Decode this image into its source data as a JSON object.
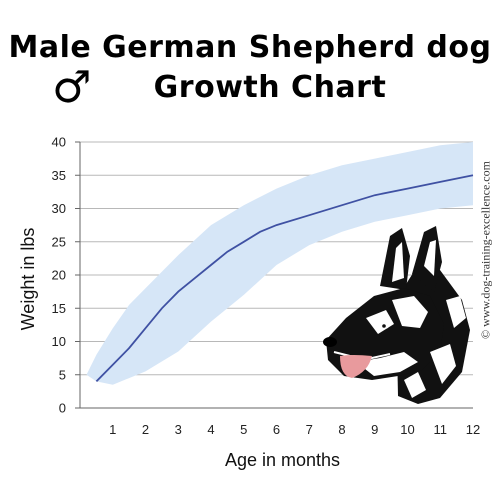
{
  "title": {
    "line1": "Male German Shepherd dog",
    "line2": "Growth Chart",
    "symbol": "♂"
  },
  "copyright": "© www.dog-training-excellence.com",
  "colors": {
    "line": "#3f51a3",
    "band": "#d6e6f7",
    "grid": "#b8b8b8",
    "axis": "#666666"
  },
  "chart_data": {
    "type": "line",
    "xlabel": "Age in months",
    "ylabel": "Weight in lbs",
    "xlim": [
      0,
      12
    ],
    "ylim": [
      0,
      40
    ],
    "xticks": [
      1,
      2,
      3,
      4,
      5,
      6,
      7,
      8,
      9,
      10,
      11,
      12
    ],
    "yticks": [
      0,
      5,
      10,
      15,
      20,
      25,
      30,
      35,
      40
    ],
    "grid": "horizontal",
    "series": [
      {
        "kind": "line",
        "x": [
          0.5,
          1,
          1.5,
          2,
          2.5,
          3,
          3.5,
          4,
          4.5,
          5,
          5.5,
          6,
          7,
          8,
          9,
          10,
          11,
          12
        ],
        "y": [
          4,
          6.5,
          9,
          12,
          15,
          17.5,
          19.5,
          21.5,
          23.5,
          25,
          26.5,
          27.5,
          29,
          30.5,
          32,
          33,
          34,
          35
        ]
      },
      {
        "kind": "band",
        "x": [
          0.2,
          0.5,
          1,
          1.5,
          2,
          3,
          4,
          5,
          6,
          7,
          8,
          9,
          10,
          11,
          12
        ],
        "upper": [
          5,
          8,
          12,
          15.5,
          18,
          23,
          27.5,
          30.5,
          33,
          35,
          36.5,
          37.5,
          38.5,
          39.5,
          40
        ],
        "lower": [
          5,
          4,
          3.5,
          4.5,
          5.5,
          8.5,
          13,
          17,
          21.5,
          24.5,
          26.5,
          28,
          29,
          30,
          30.5
        ]
      }
    ]
  }
}
